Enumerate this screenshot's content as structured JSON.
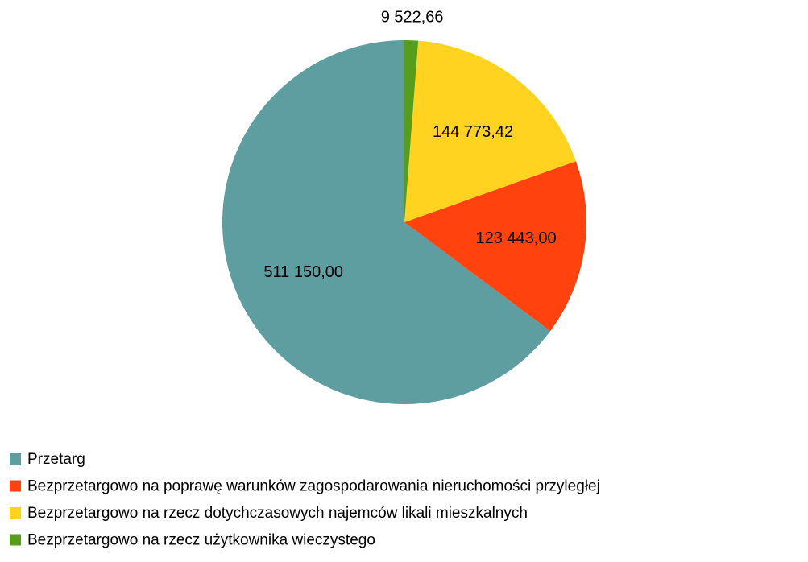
{
  "chart_data": {
    "type": "pie",
    "categories": [
      "Przetarg",
      "Bezprzetargowo na poprawę warunków zagospodarowania nieruchomości przyległej",
      "Bezprzetargowo na rzecz dotychczasowych najemców likali mieszkalnych",
      "Bezprzetargowo na rzecz użytkownika wieczystego"
    ],
    "values": [
      511150.0,
      123443.0,
      144773.42,
      9522.66
    ],
    "value_labels": [
      "511 150,00",
      "123 443,00",
      "144 773,42",
      "9 522,66"
    ],
    "colors": [
      "#5f9ea0",
      "#ff420e",
      "#ffd320",
      "#579d1c"
    ],
    "legend": "bottom-left"
  }
}
